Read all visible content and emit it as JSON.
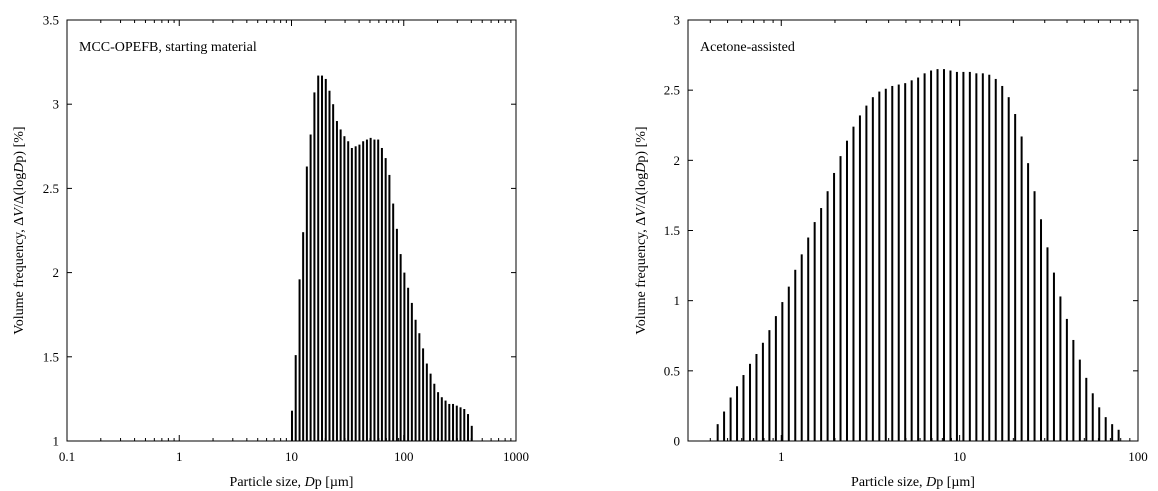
{
  "chart_data": [
    {
      "type": "bar",
      "annotation": "MCC-OPEFB, starting material",
      "xlabel": {
        "prefix": "Particle size, ",
        "italic": "D",
        "suffix": "p [µm]"
      },
      "ylabel": {
        "prefix": "Volume frequency, Δ",
        "italic1": "V",
        "mid": "/Δ(log",
        "italic2": "D",
        "suffix": "p) [%]"
      },
      "xscale": "log",
      "xlim": [
        0.1,
        1000
      ],
      "ylim": [
        1,
        3.5
      ],
      "xticks": [
        0.1,
        1,
        10,
        100,
        1000
      ],
      "xtick_labels": [
        "0.1",
        "1",
        "10",
        "100",
        "1000"
      ],
      "yticks": [
        1,
        1.5,
        2,
        2.5,
        3,
        3.5
      ],
      "ytick_labels": [
        "1",
        "1.5",
        "2",
        "2.5",
        "3",
        "3.5"
      ],
      "grid": false,
      "x": [
        10.1,
        10.9,
        11.8,
        12.7,
        13.7,
        14.8,
        16.0,
        17.3,
        18.7,
        20.2,
        21.8,
        23.5,
        25.4,
        27.4,
        29.6,
        32.0,
        34.5,
        37.3,
        40.3,
        43.5,
        47.0,
        50.7,
        54.8,
        59.2,
        63.9,
        69.0,
        74.5,
        80.5,
        86.9,
        93.8,
        101.3,
        109.4,
        118.1,
        127.5,
        137.7,
        148.7,
        160.6,
        173.4,
        187.2,
        202.2,
        218.3,
        235.7,
        254.5,
        274.8,
        296.8,
        320.5,
        346.1,
        373.7,
        403.5
      ],
      "values": [
        1.18,
        1.51,
        1.96,
        2.24,
        2.63,
        2.82,
        3.07,
        3.17,
        3.17,
        3.15,
        3.08,
        3.0,
        2.9,
        2.85,
        2.81,
        2.78,
        2.74,
        2.75,
        2.76,
        2.78,
        2.79,
        2.8,
        2.79,
        2.79,
        2.74,
        2.68,
        2.58,
        2.41,
        2.26,
        2.11,
        2.0,
        1.91,
        1.82,
        1.72,
        1.64,
        1.55,
        1.46,
        1.4,
        1.34,
        1.29,
        1.26,
        1.24,
        1.22,
        1.22,
        1.21,
        1.2,
        1.19,
        1.16,
        1.09
      ]
    },
    {
      "type": "bar",
      "annotation": "Acetone-assisted",
      "xlabel": {
        "prefix": "Particle size, ",
        "italic": "D",
        "suffix": "p [µm]"
      },
      "ylabel": {
        "prefix": "Volume frequency, Δ",
        "italic1": "V",
        "mid": "/Δ(log",
        "italic2": "D",
        "suffix": "p) [%]"
      },
      "xscale": "log",
      "xlim": [
        0.3,
        100
      ],
      "ylim": [
        0,
        3
      ],
      "xticks": [
        1,
        10,
        100
      ],
      "xtick_labels": [
        "1",
        "10",
        "100"
      ],
      "yticks": [
        0,
        0.5,
        1,
        1.5,
        2,
        2.5,
        3
      ],
      "ytick_labels": [
        "0",
        "0.5",
        "1",
        "1.5",
        "2",
        "2.5",
        "3"
      ],
      "grid": false,
      "x": [
        0.44,
        0.478,
        0.52,
        0.565,
        0.614,
        0.668,
        0.726,
        0.789,
        0.858,
        0.933,
        1.014,
        1.102,
        1.198,
        1.302,
        1.416,
        1.539,
        1.673,
        1.819,
        1.977,
        2.149,
        2.336,
        2.54,
        2.761,
        3.001,
        3.262,
        3.546,
        3.855,
        4.191,
        4.556,
        4.952,
        5.383,
        5.852,
        6.362,
        6.915,
        7.518,
        8.172,
        8.884,
        9.657,
        10.5,
        11.41,
        12.41,
        13.49,
        14.66,
        15.94,
        17.33,
        18.84,
        20.48,
        22.26,
        24.2,
        26.3,
        28.59,
        31.08,
        33.79,
        36.73,
        39.93,
        43.41,
        47.19,
        51.3,
        55.76,
        60.62,
        65.9,
        71.64,
        77.88
      ],
      "values": [
        0.12,
        0.21,
        0.31,
        0.39,
        0.47,
        0.55,
        0.62,
        0.7,
        0.79,
        0.89,
        0.99,
        1.1,
        1.22,
        1.33,
        1.45,
        1.56,
        1.66,
        1.78,
        1.91,
        2.03,
        2.14,
        2.24,
        2.32,
        2.39,
        2.45,
        2.49,
        2.51,
        2.53,
        2.54,
        2.55,
        2.57,
        2.59,
        2.62,
        2.64,
        2.65,
        2.65,
        2.64,
        2.63,
        2.63,
        2.63,
        2.62,
        2.62,
        2.61,
        2.58,
        2.53,
        2.45,
        2.33,
        2.17,
        1.98,
        1.78,
        1.58,
        1.38,
        1.2,
        1.03,
        0.87,
        0.72,
        0.58,
        0.45,
        0.34,
        0.24,
        0.17,
        0.12,
        0.08
      ]
    }
  ]
}
